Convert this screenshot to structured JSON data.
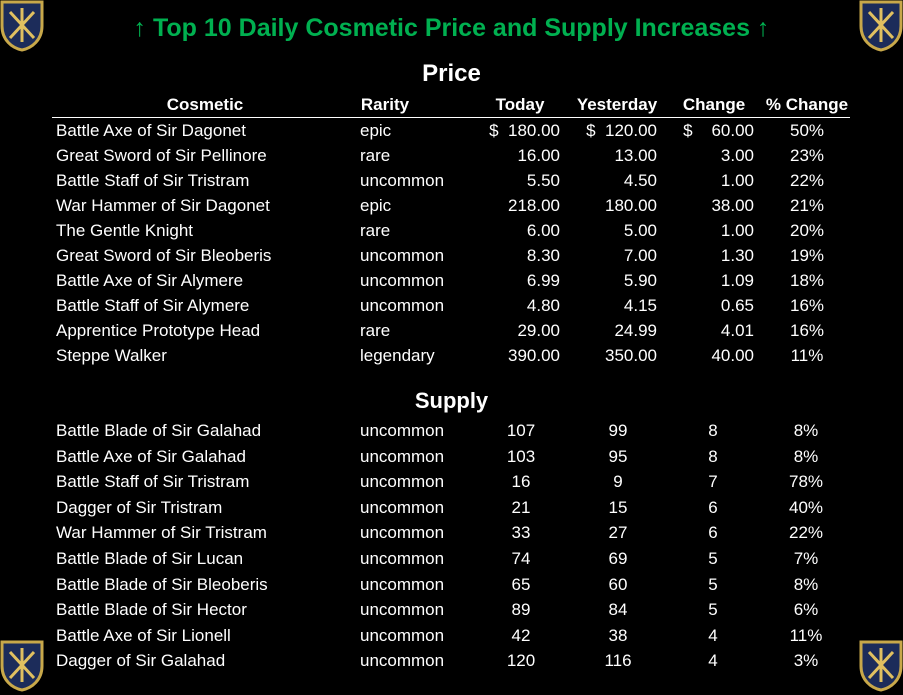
{
  "title": "↑ Top 10 Daily Cosmetic Price and Supply Increases ↑",
  "columns": [
    "Cosmetic",
    "Rarity",
    "Today",
    "Yesterday",
    "Change",
    "% Change"
  ],
  "price": {
    "heading": "Price",
    "rows": [
      [
        "Battle Axe of Sir Dagonet",
        "epic",
        "$  180.00",
        "$  120.00",
        "$    60.00",
        "50%"
      ],
      [
        "Great Sword of Sir Pellinore",
        "rare",
        "16.00",
        "13.00",
        "3.00",
        "23%"
      ],
      [
        "Battle Staff of Sir Tristram",
        "uncommon",
        "5.50",
        "4.50",
        "1.00",
        "22%"
      ],
      [
        "War Hammer of Sir Dagonet",
        "epic",
        "218.00",
        "180.00",
        "38.00",
        "21%"
      ],
      [
        "The Gentle Knight",
        "rare",
        "6.00",
        "5.00",
        "1.00",
        "20%"
      ],
      [
        "Great Sword of Sir Bleoberis",
        "uncommon",
        "8.30",
        "7.00",
        "1.30",
        "19%"
      ],
      [
        "Battle Axe of Sir Alymere",
        "uncommon",
        "6.99",
        "5.90",
        "1.09",
        "18%"
      ],
      [
        "Battle Staff of Sir Alymere",
        "uncommon",
        "4.80",
        "4.15",
        "0.65",
        "16%"
      ],
      [
        "Apprentice Prototype Head",
        "rare",
        "29.00",
        "24.99",
        "4.01",
        "16%"
      ],
      [
        "Steppe Walker",
        "legendary",
        "390.00",
        "350.00",
        "40.00",
        "11%"
      ]
    ]
  },
  "supply": {
    "heading": "Supply",
    "rows": [
      [
        "Battle Blade of Sir Galahad",
        "uncommon",
        "107",
        "99",
        "8",
        "8%"
      ],
      [
        "Battle Axe of Sir Galahad",
        "uncommon",
        "103",
        "95",
        "8",
        "8%"
      ],
      [
        "Battle Staff of Sir Tristram",
        "uncommon",
        "16",
        "9",
        "7",
        "78%"
      ],
      [
        "Dagger of Sir Tristram",
        "uncommon",
        "21",
        "15",
        "6",
        "40%"
      ],
      [
        "War Hammer of Sir Tristram",
        "uncommon",
        "33",
        "27",
        "6",
        "22%"
      ],
      [
        "Battle Blade of Sir Lucan",
        "uncommon",
        "74",
        "69",
        "5",
        "7%"
      ],
      [
        "Battle Blade of Sir Bleoberis",
        "uncommon",
        "65",
        "60",
        "5",
        "8%"
      ],
      [
        "Battle Blade of Sir Hector",
        "uncommon",
        "89",
        "84",
        "5",
        "6%"
      ],
      [
        "Battle Axe of Sir Lionell",
        "uncommon",
        "42",
        "38",
        "4",
        "11%"
      ],
      [
        "Dagger of Sir Galahad",
        "uncommon",
        "120",
        "116",
        "4",
        "3%"
      ]
    ]
  }
}
